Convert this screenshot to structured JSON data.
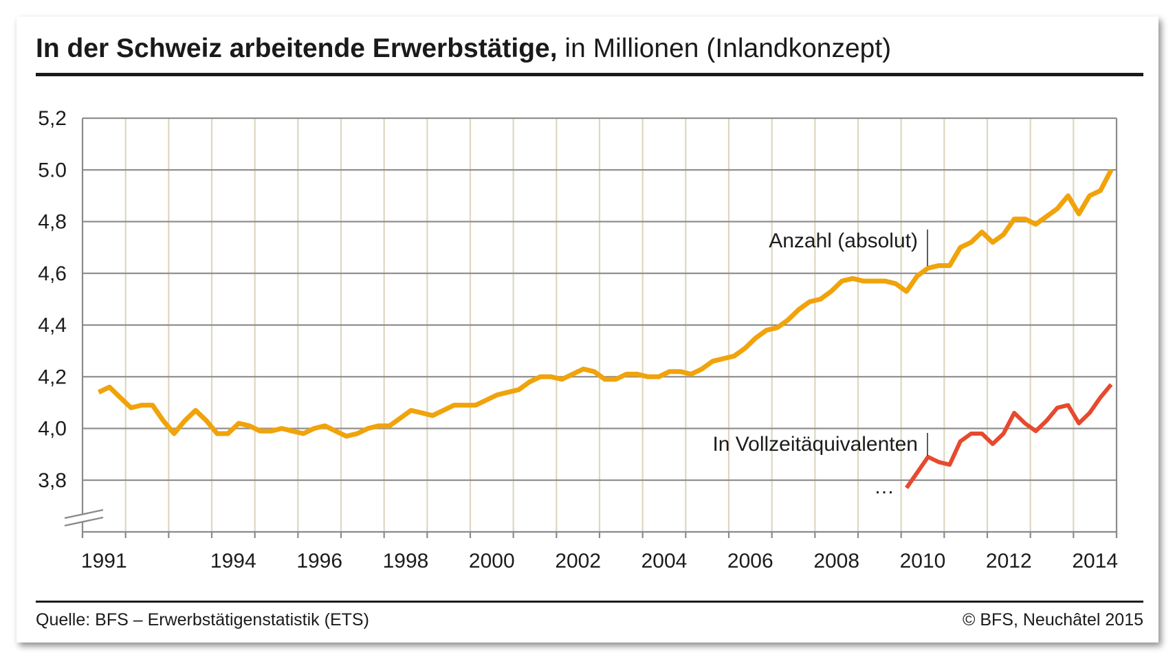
{
  "chart_data": {
    "type": "line",
    "title": "In der Schweiz arbeitende Erwerbstätige,",
    "subtitle": "in Millionen (Inlandkonzept)",
    "xlabel": "",
    "ylabel": "",
    "xlim": [
      1991,
      2014
    ],
    "ylim": [
      3.6,
      5.2
    ],
    "y_axis_break": true,
    "grid": true,
    "x_tick_labels": [
      "1991",
      "1994",
      "1996",
      "1998",
      "2000",
      "2002",
      "2004",
      "2006",
      "2008",
      "2010",
      "2012",
      "2014"
    ],
    "y_ticks": [
      {
        "value": 5.2,
        "label": "5,2"
      },
      {
        "value": 5.0,
        "label": "5.0"
      },
      {
        "value": 4.8,
        "label": "4,8"
      },
      {
        "value": 4.6,
        "label": "4,6"
      },
      {
        "value": 4.4,
        "label": "4,4"
      },
      {
        "value": 4.2,
        "label": "4,2"
      },
      {
        "value": 4.0,
        "label": "4,0"
      },
      {
        "value": 3.8,
        "label": "3,8"
      }
    ],
    "series": [
      {
        "name": "Anzahl (absolut)",
        "color": "#f0a30a",
        "x": [
          "1991-Q2",
          "1991-Q3",
          "1991-Q4",
          "1992-Q1",
          "1992-Q2",
          "1992-Q3",
          "1992-Q4",
          "1993-Q1",
          "1993-Q2",
          "1993-Q3",
          "1993-Q4",
          "1994-Q1",
          "1994-Q2",
          "1994-Q3",
          "1994-Q4",
          "1995-Q1",
          "1995-Q2",
          "1995-Q3",
          "1995-Q4",
          "1996-Q1",
          "1996-Q2",
          "1996-Q3",
          "1996-Q4",
          "1997-Q1",
          "1997-Q2",
          "1997-Q3",
          "1997-Q4",
          "1998-Q1",
          "1998-Q2",
          "1998-Q3",
          "1998-Q4",
          "1999-Q1",
          "1999-Q2",
          "1999-Q3",
          "1999-Q4",
          "2000-Q1",
          "2000-Q2",
          "2000-Q3",
          "2000-Q4",
          "2001-Q1",
          "2001-Q2",
          "2001-Q3",
          "2001-Q4",
          "2002-Q1",
          "2002-Q2",
          "2002-Q3",
          "2002-Q4",
          "2003-Q1",
          "2003-Q2",
          "2003-Q3",
          "2003-Q4",
          "2004-Q1",
          "2004-Q2",
          "2004-Q3",
          "2004-Q4",
          "2005-Q1",
          "2005-Q2",
          "2005-Q3",
          "2005-Q4",
          "2006-Q1",
          "2006-Q2",
          "2006-Q3",
          "2006-Q4",
          "2007-Q1",
          "2007-Q2",
          "2007-Q3",
          "2007-Q4",
          "2008-Q1",
          "2008-Q2",
          "2008-Q3",
          "2008-Q4",
          "2009-Q1",
          "2009-Q2",
          "2009-Q3",
          "2009-Q4",
          "2010-Q1",
          "2010-Q2",
          "2010-Q3",
          "2010-Q4",
          "2011-Q1",
          "2011-Q2",
          "2011-Q3",
          "2011-Q4",
          "2012-Q1",
          "2012-Q2",
          "2012-Q3",
          "2012-Q4",
          "2013-Q1",
          "2013-Q2",
          "2013-Q3",
          "2013-Q4",
          "2014-Q1",
          "2014-Q2",
          "2014-Q3",
          "2014-Q4"
        ],
        "values": [
          4.14,
          4.16,
          4.12,
          4.08,
          4.09,
          4.09,
          4.03,
          3.98,
          4.03,
          4.07,
          4.03,
          3.98,
          3.98,
          4.02,
          4.01,
          3.99,
          3.99,
          4.0,
          3.99,
          3.98,
          4.0,
          4.01,
          3.99,
          3.97,
          3.98,
          4.0,
          4.01,
          4.01,
          4.04,
          4.07,
          4.06,
          4.05,
          4.07,
          4.09,
          4.09,
          4.09,
          4.11,
          4.13,
          4.14,
          4.15,
          4.18,
          4.2,
          4.2,
          4.19,
          4.21,
          4.23,
          4.22,
          4.19,
          4.19,
          4.21,
          4.21,
          4.2,
          4.2,
          4.22,
          4.22,
          4.21,
          4.23,
          4.26,
          4.27,
          4.28,
          4.31,
          4.35,
          4.38,
          4.39,
          4.42,
          4.46,
          4.49,
          4.5,
          4.53,
          4.57,
          4.58,
          4.57,
          4.57,
          4.57,
          4.56,
          4.53,
          4.59,
          4.62,
          4.63,
          4.63,
          4.7,
          4.72,
          4.76,
          4.72,
          4.75,
          4.81,
          4.81,
          4.79,
          4.82,
          4.85,
          4.9,
          4.83,
          4.9,
          4.92,
          5.0
        ]
      },
      {
        "name": "In Vollzeitäquivalenten",
        "color": "#e64a2e",
        "x": [
          "2010-Q1",
          "2010-Q2",
          "2010-Q3",
          "2010-Q4",
          "2011-Q1",
          "2011-Q2",
          "2011-Q3",
          "2011-Q4",
          "2012-Q1",
          "2012-Q2",
          "2012-Q3",
          "2012-Q4",
          "2013-Q1",
          "2013-Q2",
          "2013-Q3",
          "2013-Q4",
          "2014-Q1",
          "2014-Q2",
          "2014-Q3",
          "2014-Q4"
        ],
        "values": [
          3.77,
          3.83,
          3.89,
          3.87,
          3.86,
          3.95,
          3.98,
          3.98,
          3.94,
          3.98,
          4.06,
          4.02,
          3.99,
          4.03,
          4.08,
          4.09,
          4.02,
          4.06,
          4.12,
          4.17
        ]
      }
    ],
    "annotations": [
      "…"
    ]
  },
  "footer": {
    "source": "Quelle: BFS – Erwerbstätigenstatistik (ETS)",
    "copyright": "© BFS, Neuchâtel 2015"
  }
}
